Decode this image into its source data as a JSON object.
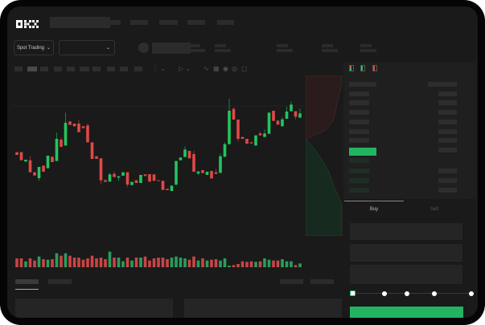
{
  "brand": {
    "logo": "OKX"
  },
  "colors": {
    "up": "#22c55e",
    "down": "#e04848",
    "background": "#1a1a1a",
    "accent": "#22b461"
  },
  "market_selector": {
    "label": "Spot Trading",
    "chevron": "chevron-down-icon"
  },
  "pair_selector": {
    "chevron": "chevron-down-icon"
  },
  "toolbar": {
    "icons": [
      "line-indicator-icon",
      "ruler-icon",
      "camera-icon",
      "settings-icon",
      "fullscreen-icon"
    ]
  },
  "orderbook": {
    "view_icons": [
      "orderbook-both-icon",
      "orderbook-bids-icon",
      "orderbook-asks-icon"
    ]
  },
  "trade_panel": {
    "tabs": [
      {
        "label": "Buy"
      },
      {
        "label": "Sell"
      }
    ],
    "slider_value_percent": 0,
    "slider_marks": [
      0,
      25,
      50,
      75,
      100
    ]
  },
  "chart_data": {
    "type": "candlestick",
    "candles": [
      [
        285,
        285,
        275,
        275
      ],
      [
        285,
        285,
        255,
        255
      ],
      [
        250,
        257,
        250,
        257
      ],
      [
        255,
        270,
        210,
        210
      ],
      [
        210,
        210,
        198,
        198
      ],
      [
        188,
        230,
        178,
        230
      ],
      [
        235,
        235,
        212,
        212
      ],
      [
        225,
        272,
        225,
        272
      ],
      [
        268,
        268,
        248,
        248
      ],
      [
        252,
        358,
        252,
        335
      ],
      [
        332,
        340,
        305,
        305
      ],
      [
        310,
        432,
        310,
        395
      ],
      [
        400,
        400,
        387,
        387
      ],
      [
        392,
        392,
        382,
        382
      ],
      [
        392,
        405,
        360,
        360
      ],
      [
        382,
        382,
        375,
        375
      ],
      [
        385,
        392,
        322,
        322
      ],
      [
        322,
        322,
        260,
        260
      ],
      [
        270,
        270,
        260,
        260
      ],
      [
        262,
        262,
        165,
        180
      ],
      [
        180,
        185,
        174,
        174
      ],
      [
        175,
        208,
        175,
        202
      ],
      [
        204,
        212,
        192,
        192
      ],
      [
        190,
        195,
        178,
        195
      ],
      [
        197,
        210,
        197,
        210
      ],
      [
        210,
        210,
        155,
        164
      ],
      [
        162,
        174,
        162,
        174
      ],
      [
        180,
        180,
        170,
        170
      ],
      [
        170,
        200,
        170,
        200
      ],
      [
        202,
        202,
        196,
        196
      ],
      [
        203,
        203,
        175,
        175
      ],
      [
        202,
        202,
        178,
        178
      ],
      [
        180,
        180,
        177,
        177
      ],
      [
        178,
        178,
        144,
        144
      ],
      [
        148,
        148,
        143,
        143
      ],
      [
        140,
        160,
        140,
        160
      ],
      [
        164,
        252,
        160,
        252
      ],
      [
        255,
        265,
        255,
        265
      ],
      [
        267,
        307,
        267,
        295
      ],
      [
        290,
        290,
        262,
        262
      ],
      [
        278,
        290,
        212,
        212
      ],
      [
        205,
        213,
        200,
        213
      ],
      [
        218,
        218,
        207,
        207
      ],
      [
        200,
        212,
        200,
        212
      ],
      [
        215,
        215,
        187,
        187
      ],
      [
        210,
        222,
        204,
        204
      ],
      [
        208,
        280,
        205,
        270
      ],
      [
        268,
        322,
        268,
        315
      ],
      [
        315,
        485,
        315,
        440
      ],
      [
        447,
        452,
        407,
        407
      ],
      [
        407,
        407,
        325,
        335
      ],
      [
        342,
        342,
        335,
        335
      ],
      [
        335,
        335,
        317,
        317
      ],
      [
        322,
        322,
        318,
        318
      ],
      [
        310,
        348,
        310,
        348
      ],
      [
        355,
        362,
        348,
        348
      ],
      [
        342,
        370,
        342,
        355
      ],
      [
        354,
        433,
        354,
        433
      ],
      [
        440,
        440,
        402,
        402
      ],
      [
        403,
        403,
        388,
        388
      ],
      [
        382,
        415,
        382,
        408
      ],
      [
        410,
        455,
        410,
        437
      ],
      [
        438,
        475,
        438,
        463
      ],
      [
        438,
        438,
        408,
        418
      ],
      [
        414,
        448,
        414,
        430
      ]
    ],
    "volumes": [
      33,
      33,
      22,
      33,
      25,
      40,
      30,
      28,
      30,
      52,
      43,
      52,
      43,
      36,
      36,
      28,
      33,
      43,
      33,
      36,
      30,
      58,
      36,
      36,
      22,
      36,
      25,
      36,
      36,
      40,
      25,
      33,
      36,
      36,
      30,
      36,
      40,
      36,
      33,
      28,
      40,
      25,
      33,
      25,
      28,
      30,
      25,
      33,
      6,
      8,
      12,
      22,
      20,
      22,
      20,
      22,
      33,
      28,
      25,
      25,
      30,
      22,
      22,
      8,
      14
    ],
    "grid": false
  }
}
